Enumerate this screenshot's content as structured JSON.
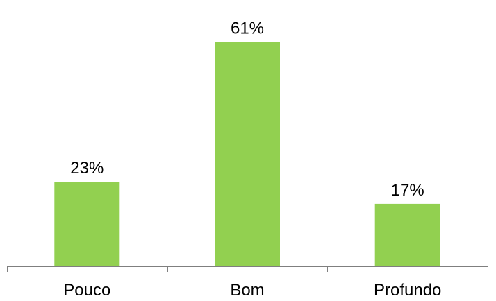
{
  "chart_data": {
    "type": "bar",
    "categories": [
      "Pouco",
      "Bom",
      "Profundo"
    ],
    "values": [
      23,
      61,
      17
    ],
    "data_labels": [
      "23%",
      "61%",
      "17%"
    ],
    "title": "",
    "xlabel": "",
    "ylabel": "",
    "ylim": [
      0,
      63
    ],
    "grid": false,
    "legend": "none",
    "bar_color": "#92d050",
    "axis_color": "#7f7f7f"
  }
}
